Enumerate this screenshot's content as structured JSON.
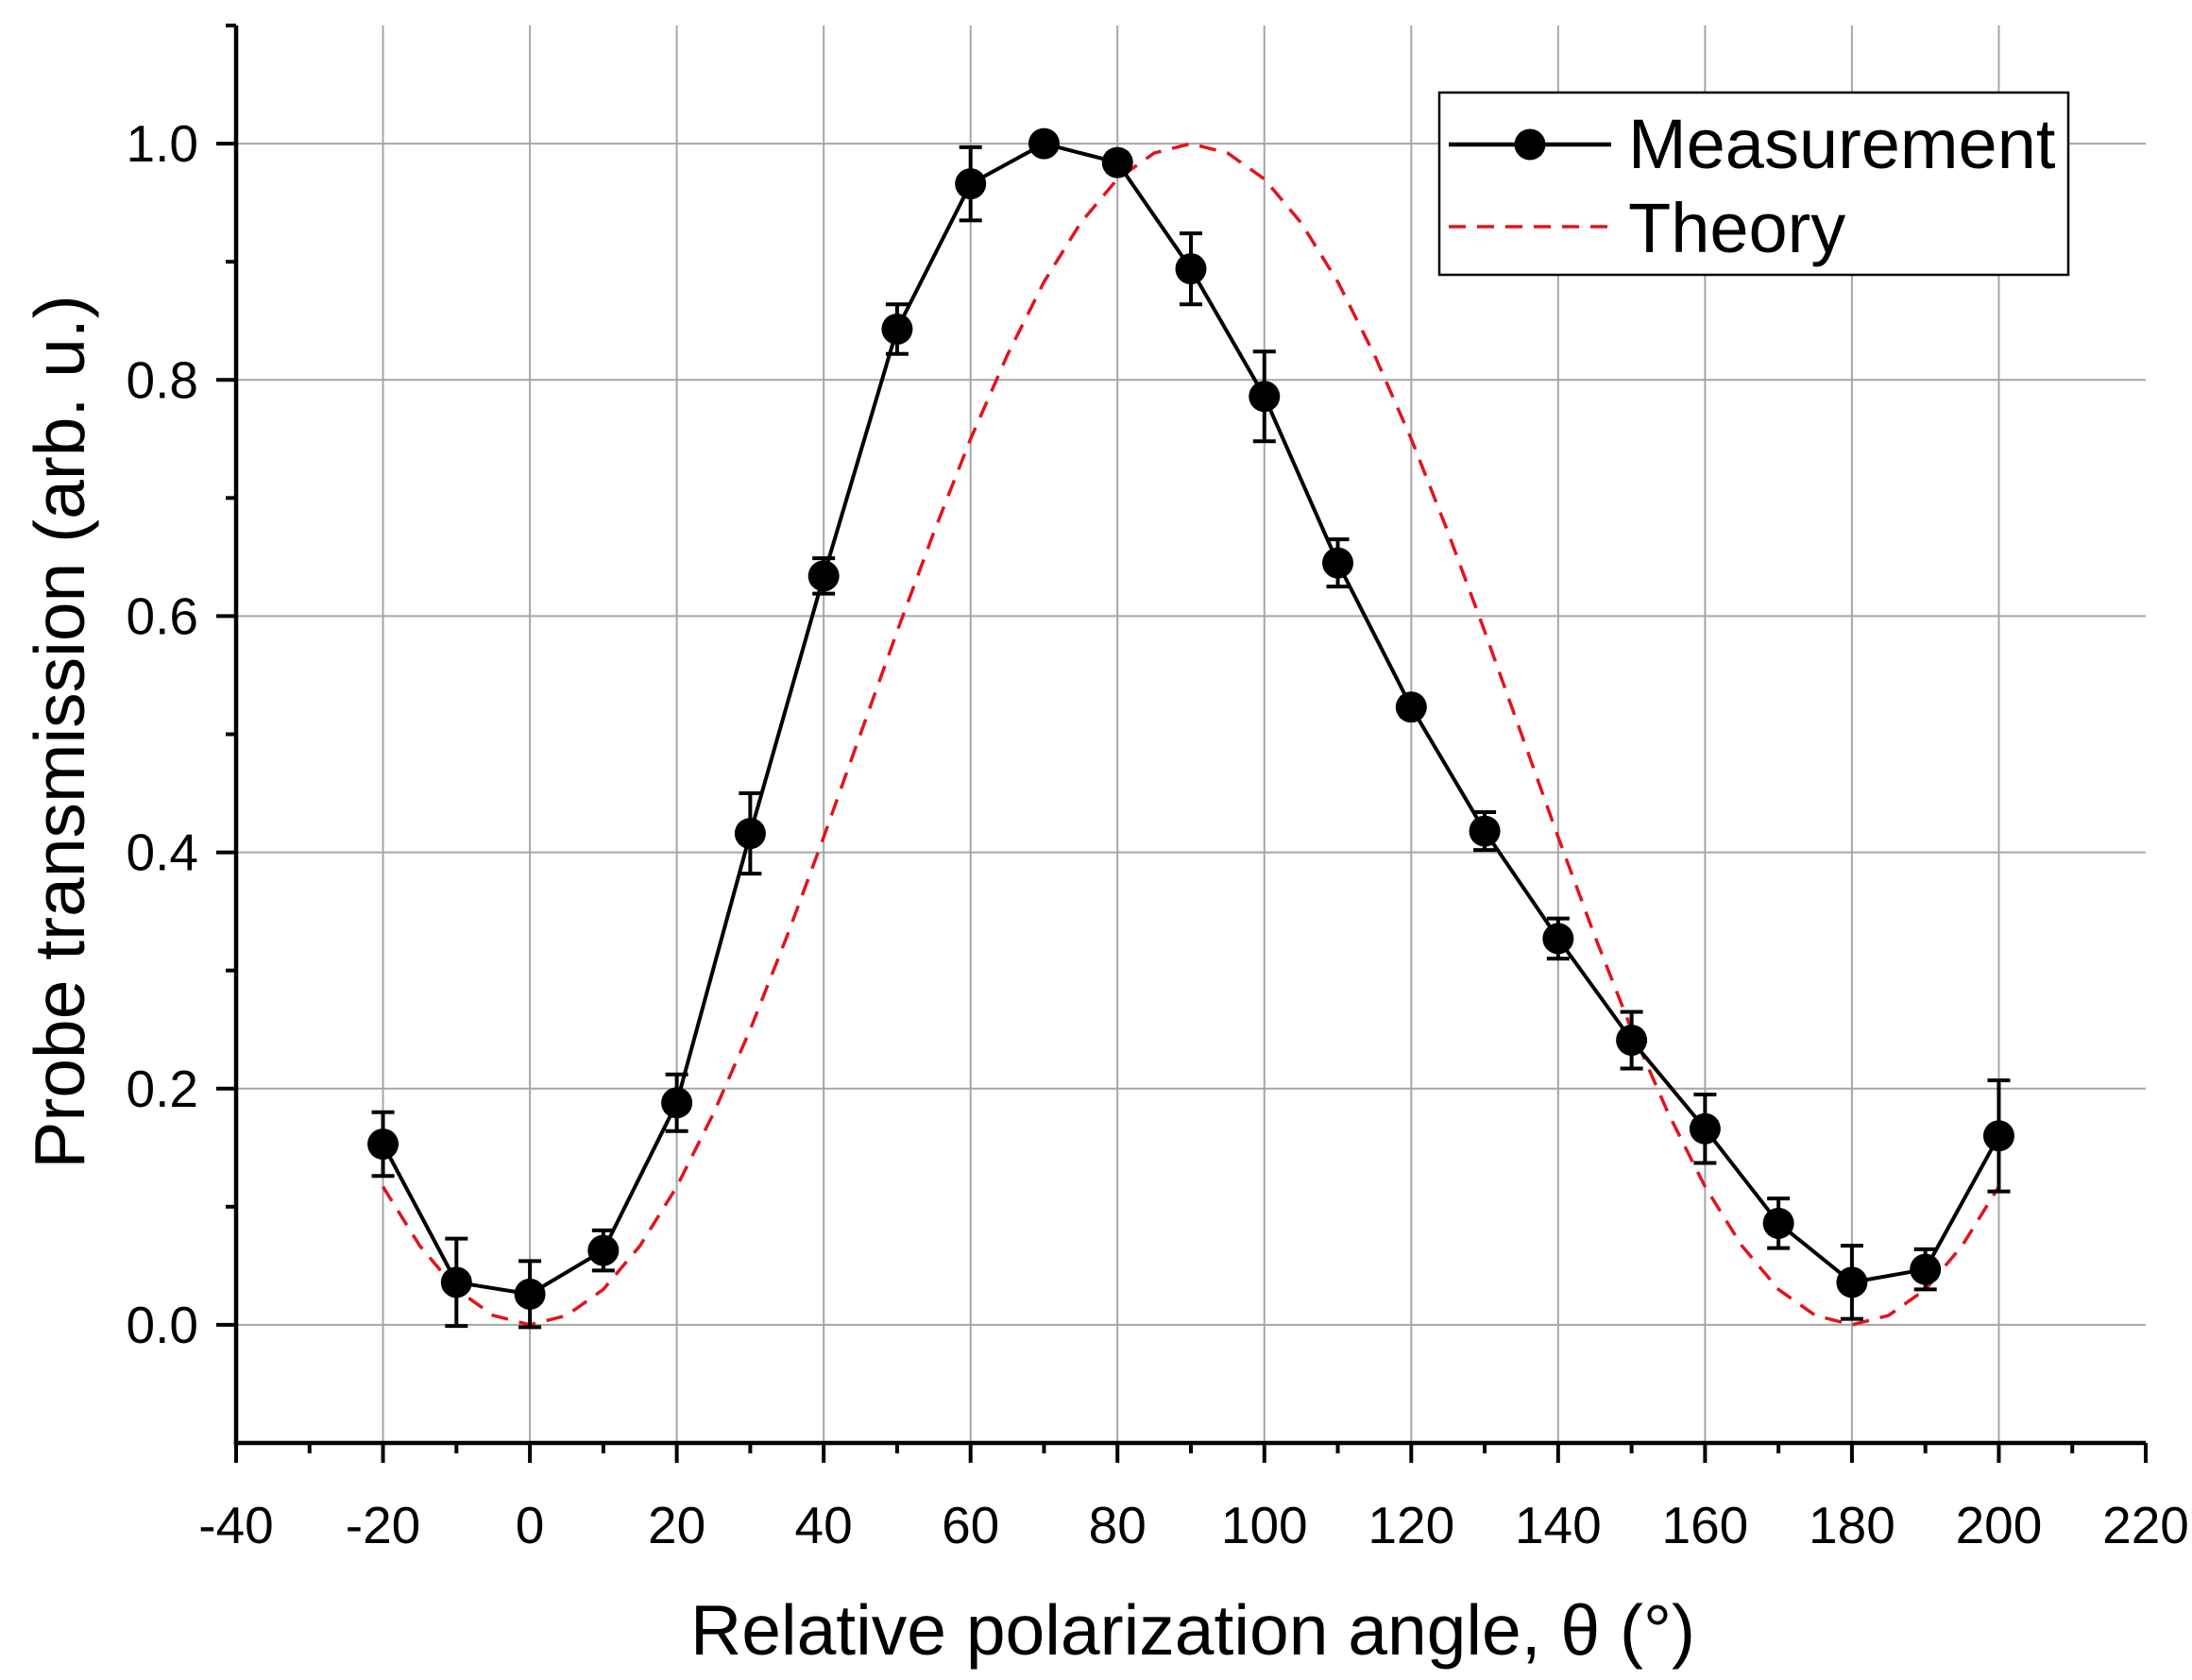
{
  "chart_data": {
    "type": "line",
    "title": "",
    "xlabel": "Relative polarization angle, θ (°)",
    "ylabel": "Probe transmission (arb. u.)",
    "xlim": [
      -40,
      220
    ],
    "ylim": [
      -0.1,
      1.1
    ],
    "x_ticks": [
      -40,
      -20,
      0,
      20,
      40,
      60,
      80,
      100,
      120,
      140,
      160,
      180,
      200,
      220
    ],
    "x_tick_labels": [
      "-40",
      "-20",
      "0",
      "20",
      "40",
      "60",
      "80",
      "100",
      "120",
      "140",
      "160",
      "180",
      "200",
      "220"
    ],
    "y_ticks": [
      0.0,
      0.2,
      0.4,
      0.6,
      0.8,
      1.0
    ],
    "y_tick_labels": [
      "0.0",
      "0.2",
      "0.4",
      "0.6",
      "0.8",
      "1.0"
    ],
    "grid": true,
    "legend_position": "top-right",
    "series": [
      {
        "name": "Measurement",
        "color": "#000000",
        "x": [
          -20,
          -10,
          0,
          10,
          20,
          30,
          40,
          50,
          60,
          70,
          80,
          90,
          100,
          110,
          120,
          130,
          140,
          150,
          160,
          170,
          180,
          190,
          200
        ],
        "y": [
          0.153,
          0.036,
          0.026,
          0.063,
          0.188,
          0.416,
          0.634,
          0.843,
          0.966,
          1.0,
          0.984,
          0.894,
          0.786,
          0.645,
          0.523,
          0.418,
          0.327,
          0.241,
          0.166,
          0.086,
          0.036,
          0.047,
          0.16
        ],
        "yerr": [
          0.027,
          0.037,
          0.028,
          0.017,
          0.024,
          0.034,
          0.015,
          0.021,
          0.031,
          0.006,
          0.008,
          0.03,
          0.038,
          0.02,
          0.008,
          0.016,
          0.017,
          0.024,
          0.029,
          0.021,
          0.031,
          0.017,
          0.047
        ]
      },
      {
        "name": "Theory",
        "color": "#e3131b",
        "x": [
          -20,
          -15,
          -10,
          -5,
          0,
          5,
          10,
          15,
          20,
          25,
          30,
          35,
          40,
          45,
          50,
          55,
          60,
          65,
          70,
          75,
          80,
          85,
          90,
          95,
          100,
          105,
          110,
          115,
          120,
          125,
          130,
          135,
          140,
          145,
          150,
          155,
          160,
          165,
          170,
          175,
          180,
          185,
          190,
          195,
          200
        ],
        "y": [
          0.117,
          0.067,
          0.03,
          0.008,
          0.0,
          0.008,
          0.03,
          0.067,
          0.117,
          0.179,
          0.25,
          0.329,
          0.413,
          0.5,
          0.587,
          0.671,
          0.75,
          0.821,
          0.883,
          0.933,
          0.97,
          0.992,
          1.0,
          0.992,
          0.97,
          0.933,
          0.883,
          0.821,
          0.75,
          0.671,
          0.587,
          0.5,
          0.413,
          0.329,
          0.25,
          0.179,
          0.117,
          0.067,
          0.03,
          0.008,
          0.0,
          0.008,
          0.03,
          0.067,
          0.117
        ]
      }
    ]
  }
}
